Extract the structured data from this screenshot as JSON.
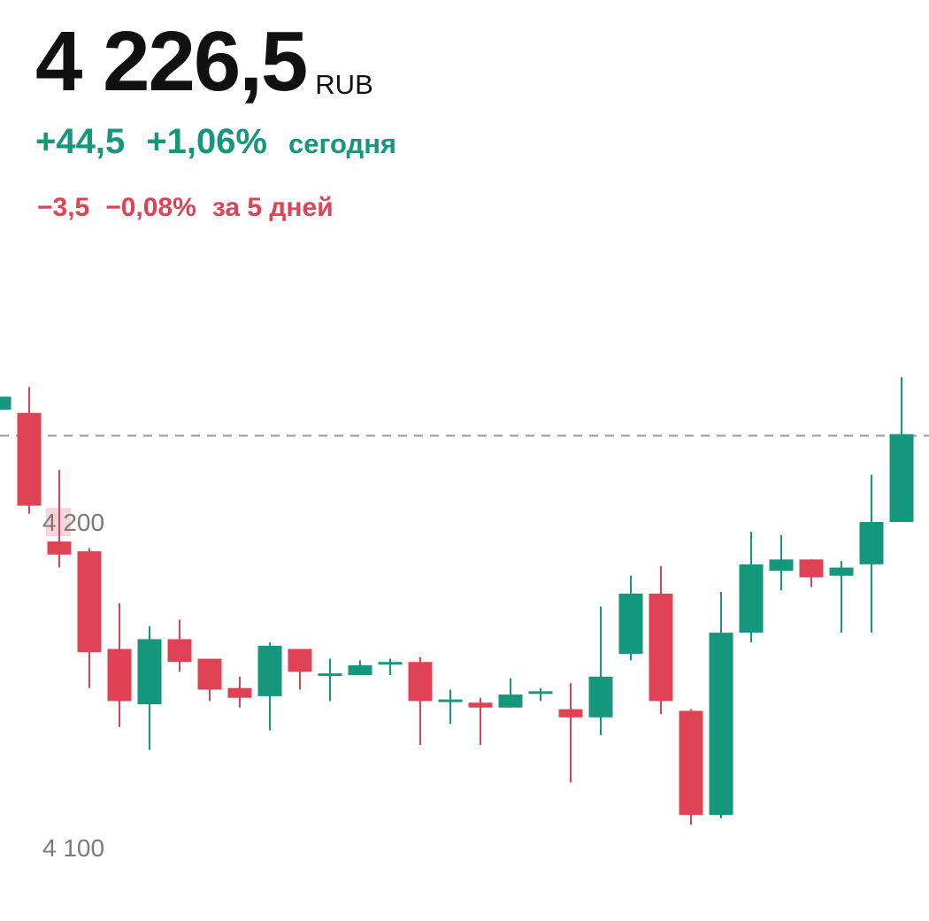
{
  "quote": {
    "price": "4 226,5",
    "currency": "RUB",
    "today": {
      "abs": "+44,5",
      "pct": "+1,06%",
      "label": "сегодня"
    },
    "five_days": {
      "abs": "−3,5",
      "pct": "−0,08%",
      "label": "за 5 дней"
    }
  },
  "colors": {
    "up": "#14977c",
    "down": "#e04255",
    "text": "#111111",
    "axis_label": "#7a7a7a",
    "reference_line": "#9a9a9a",
    "tick_highlight": "#f7d4d8"
  },
  "chart_data": {
    "type": "candlestick",
    "y_ticks": [
      {
        "value": 4200,
        "label": "4 200"
      },
      {
        "value": 4100,
        "label": "4 100"
      }
    ],
    "reference_line": 4226.5,
    "candles": [
      {
        "open": 4234.5,
        "high": 4243.5,
        "low": 4225.5,
        "close": 4238.5
      },
      {
        "open": 4233.5,
        "high": 4241.5,
        "low": 4202.5,
        "close": 4205.0
      },
      {
        "open": 4194.0,
        "high": 4216.0,
        "low": 4186.0,
        "close": 4190.0
      },
      {
        "open": 4191.0,
        "high": 4192.0,
        "low": 4149.0,
        "close": 4160.0
      },
      {
        "open": 4161.0,
        "high": 4175.0,
        "low": 4137.0,
        "close": 4145.0
      },
      {
        "open": 4144.0,
        "high": 4168.0,
        "low": 4130.0,
        "close": 4164.0
      },
      {
        "open": 4164.0,
        "high": 4170.0,
        "low": 4154.0,
        "close": 4157.0
      },
      {
        "open": 4158.0,
        "high": 4158.0,
        "low": 4145.0,
        "close": 4148.5
      },
      {
        "open": 4149.0,
        "high": 4152.5,
        "low": 4143.0,
        "close": 4146.0
      },
      {
        "open": 4146.5,
        "high": 4163.0,
        "low": 4136.0,
        "close": 4162.0
      },
      {
        "open": 4161.0,
        "high": 4161.0,
        "low": 4148.5,
        "close": 4154.0
      },
      {
        "open": 4153.5,
        "high": 4158.0,
        "low": 4145.0,
        "close": 4153.5
      },
      {
        "open": 4153.0,
        "high": 4157.5,
        "low": 4153.0,
        "close": 4156.0
      },
      {
        "open": 4157.0,
        "high": 4158.0,
        "low": 4153.0,
        "close": 4157.0
      },
      {
        "open": 4157.0,
        "high": 4158.5,
        "low": 4131.5,
        "close": 4145.0
      },
      {
        "open": 4145.5,
        "high": 4148.5,
        "low": 4138.0,
        "close": 4145.5
      },
      {
        "open": 4144.5,
        "high": 4146.0,
        "low": 4131.5,
        "close": 4143.0
      },
      {
        "open": 4143.0,
        "high": 4152.0,
        "low": 4143.0,
        "close": 4147.0
      },
      {
        "open": 4148.0,
        "high": 4149.0,
        "low": 4145.0,
        "close": 4148.0
      },
      {
        "open": 4142.5,
        "high": 4150.5,
        "low": 4120.0,
        "close": 4140.0
      },
      {
        "open": 4140.0,
        "high": 4174.0,
        "low": 4134.5,
        "close": 4152.5
      },
      {
        "open": 4159.5,
        "high": 4183.5,
        "low": 4157.5,
        "close": 4178.0
      },
      {
        "open": 4178.0,
        "high": 4186.5,
        "low": 4141.0,
        "close": 4145.0
      },
      {
        "open": 4142.0,
        "high": 4142.5,
        "low": 4107.0,
        "close": 4110.0
      },
      {
        "open": 4110.0,
        "high": 4178.5,
        "low": 4109.0,
        "close": 4166.0
      },
      {
        "open": 4166.0,
        "high": 4197.0,
        "low": 4163.0,
        "close": 4187.0
      },
      {
        "open": 4185.0,
        "high": 4196.0,
        "low": 4179.0,
        "close": 4188.5
      },
      {
        "open": 4188.5,
        "high": 4188.5,
        "low": 4180.0,
        "close": 4183.0
      },
      {
        "open": 4183.5,
        "high": 4188.0,
        "low": 4166.0,
        "close": 4186.0
      },
      {
        "open": 4187.0,
        "high": 4214.5,
        "low": 4166.0,
        "close": 4200.0
      },
      {
        "open": 4200.0,
        "high": 4244.5,
        "low": 4200.0,
        "close": 4227.0
      }
    ]
  }
}
